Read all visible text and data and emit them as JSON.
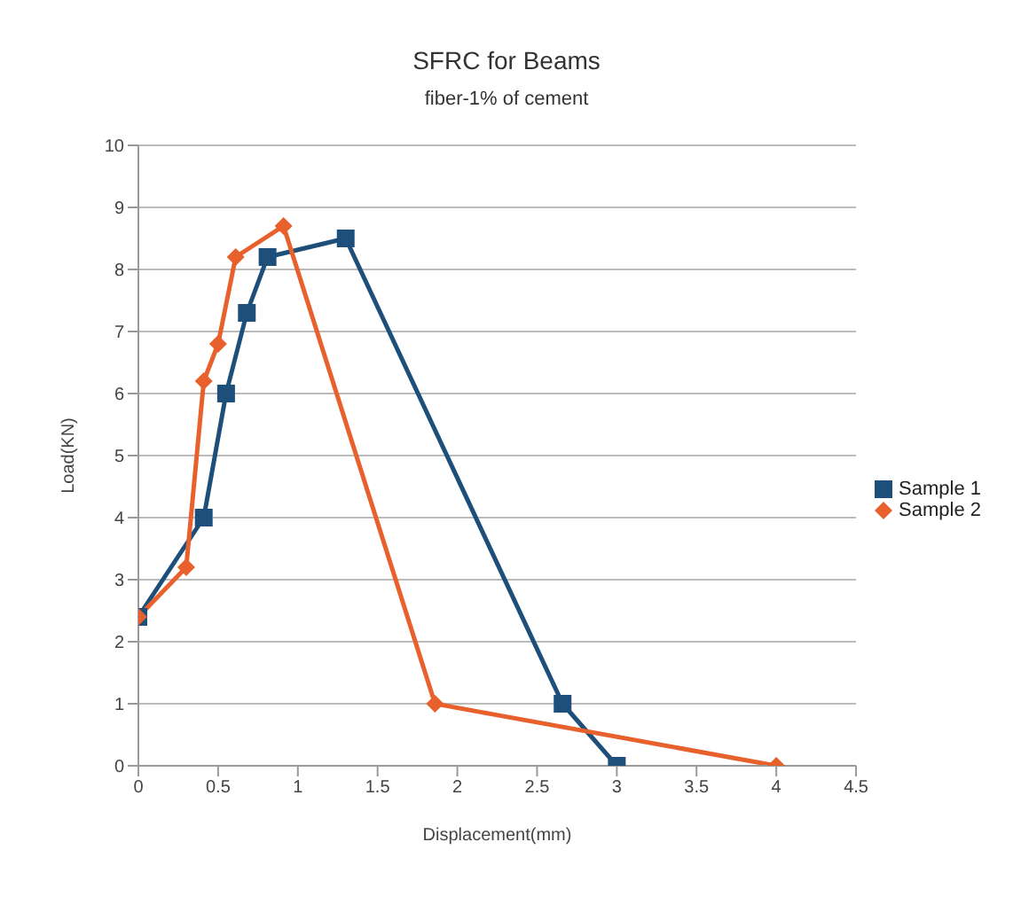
{
  "chart_data": {
    "type": "line",
    "title": "SFRC for Beams",
    "subtitle": "fiber-1% of cement",
    "xlabel": "Displacement(mm)",
    "ylabel": "Load(KN)",
    "xlim": [
      0,
      4.5
    ],
    "xticks": [
      0,
      0.5,
      1,
      1.5,
      2,
      2.5,
      3,
      3.5,
      4,
      4.5
    ],
    "ylim": [
      0,
      10
    ],
    "yticks": [
      0,
      1,
      2,
      3,
      4,
      5,
      6,
      7,
      8,
      9,
      10
    ],
    "grid": "y",
    "legend": "right",
    "line_style": "solid",
    "series": [
      {
        "name": "Sample 1",
        "color": "#1d4f7a",
        "marker": "square",
        "x": [
          0,
          0.41,
          0.55,
          0.68,
          0.81,
          1.3,
          2.66,
          3
        ],
        "values": [
          2.4,
          4,
          6,
          7.3,
          8.2,
          8.5,
          1,
          0
        ]
      },
      {
        "name": "Sample 2",
        "color": "#e8602c",
        "marker": "diamond",
        "x": [
          0,
          0.3,
          0.41,
          0.5,
          0.61,
          0.91,
          1.86,
          4
        ],
        "values": [
          2.4,
          3.2,
          6.2,
          6.8,
          8.2,
          8.7,
          1,
          0
        ]
      }
    ]
  }
}
